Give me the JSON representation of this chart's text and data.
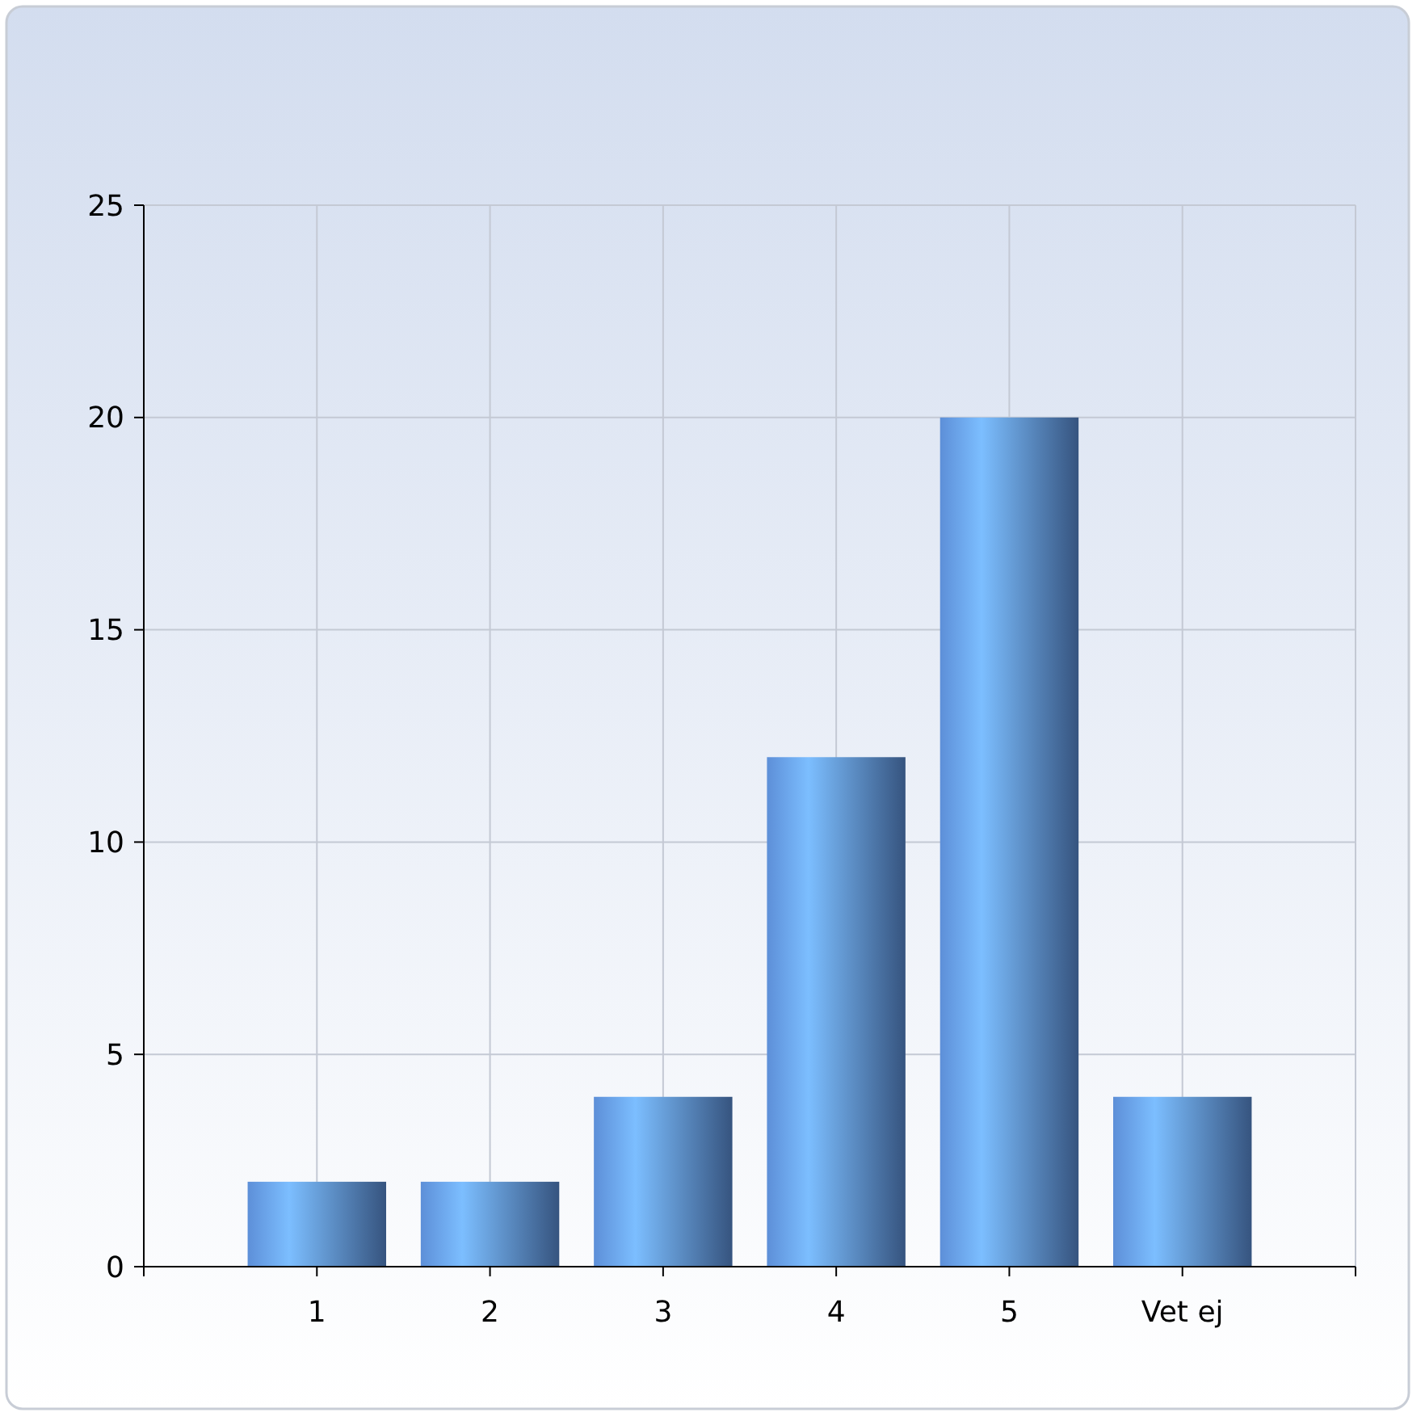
{
  "chart_data": {
    "type": "bar",
    "categories": [
      "1",
      "2",
      "3",
      "4",
      "5",
      "Vet ej"
    ],
    "values": [
      2,
      2,
      4,
      12,
      20,
      4
    ],
    "color": "#5d8fd8",
    "ylim": [
      0,
      25
    ],
    "yticks": [
      0,
      5,
      10,
      15,
      20,
      25
    ],
    "grid": true
  }
}
